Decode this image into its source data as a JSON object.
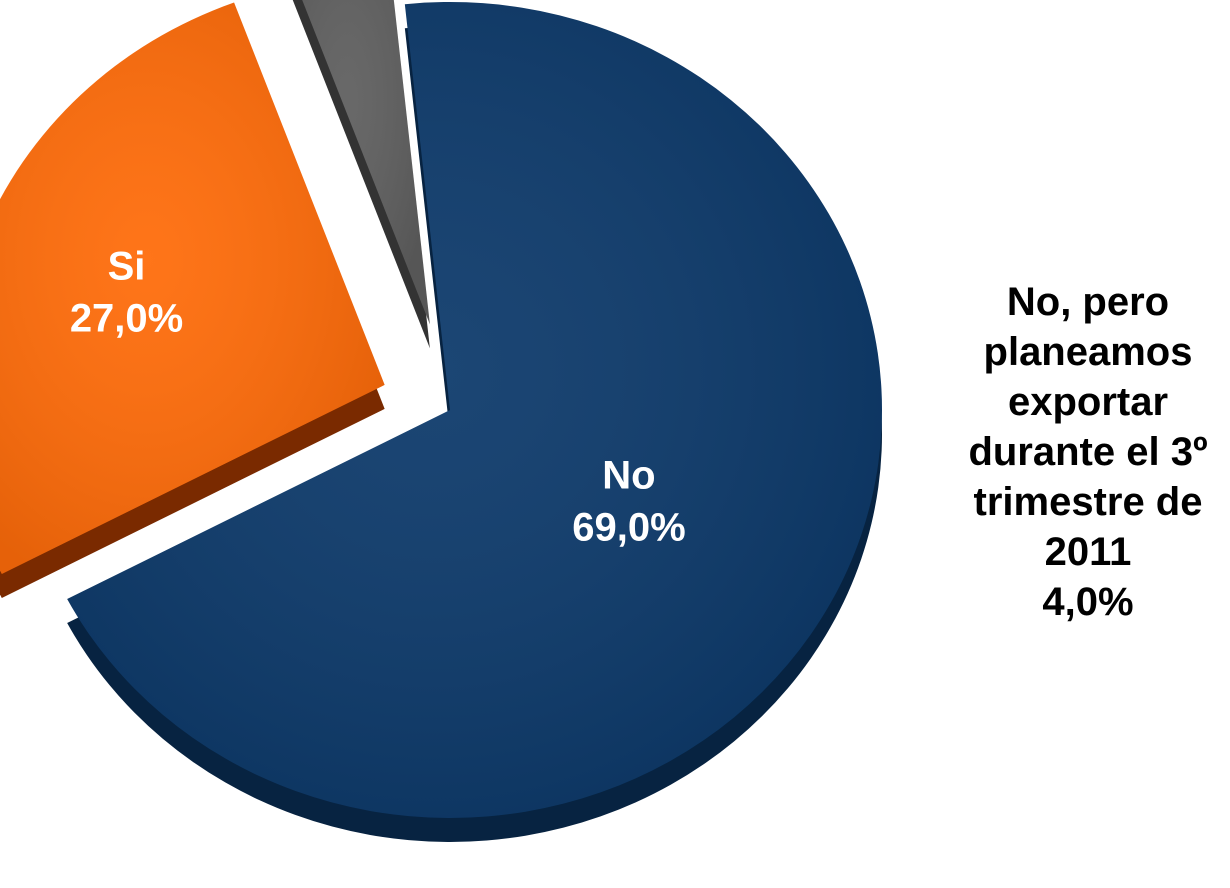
{
  "chart_data": {
    "type": "pie",
    "title": "",
    "slices": [
      {
        "label": "No",
        "value_label": "69,0%",
        "value": 69.0,
        "color": "#0d3a6b",
        "side_color": "#072341",
        "label_color": "#ffffff",
        "exploded": false
      },
      {
        "label": "Si",
        "value_label": "27,0%",
        "value": 27.0,
        "color": "#ff6c0a",
        "side_color": "#7a2a00",
        "label_color": "#ffffff",
        "exploded": true
      },
      {
        "label": "No, pero planeamos exportar durante el 3º trimestre de 2011",
        "label_lines": [
          "No, pero",
          "planeamos",
          "exportar",
          "durante el 3º",
          "trimestre de",
          "2011"
        ],
        "value_label": "4,0%",
        "value": 4.0,
        "color": "#5f5f5f",
        "side_color": "#333333",
        "label_color": "#000000",
        "exploded": true
      }
    ]
  }
}
